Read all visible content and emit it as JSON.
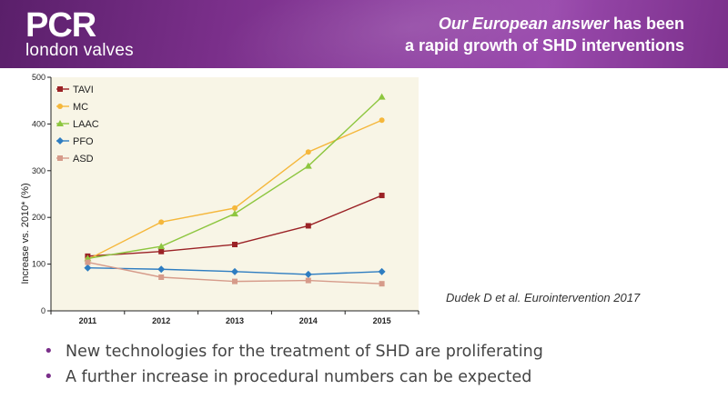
{
  "header": {
    "logo_main": "PCR",
    "logo_sub": "london valves",
    "title_em": "Our European answer",
    "title_rest": " has been",
    "title_line2": "a rapid growth of SHD interventions"
  },
  "citation": "Dudek D et al. Eurointervention 2017",
  "bullets": [
    "New technologies for the treatment of SHD are proliferating",
    "A further increase in procedural numbers can be expected"
  ],
  "colors": {
    "header": "#7a2f8a",
    "plot_background": "#f8f5e6",
    "TAVI": "#9b2226",
    "MC": "#f5b73b",
    "LAAC": "#8dc63f",
    "PFO": "#2e7dc1",
    "ASD": "#d69b8a"
  },
  "chart_data": {
    "type": "line",
    "title": "",
    "xlabel": "",
    "ylabel": "Increase vs. 2010* (%)",
    "x": [
      "2011",
      "2012",
      "2013",
      "2014",
      "2015"
    ],
    "ylim": [
      0,
      500
    ],
    "yticks": [
      "0",
      "100",
      "200",
      "300",
      "400",
      "500"
    ],
    "grid": false,
    "legend": "top-left",
    "series": [
      {
        "name": "TAVI",
        "marker": "square",
        "values": [
          117,
          127,
          142,
          182,
          247
        ]
      },
      {
        "name": "MC",
        "marker": "circle",
        "values": [
          110,
          190,
          220,
          340,
          408
        ]
      },
      {
        "name": "LAAC",
        "marker": "triangle",
        "values": [
          112,
          138,
          208,
          310,
          458
        ]
      },
      {
        "name": "PFO",
        "marker": "diamond",
        "values": [
          92,
          89,
          84,
          78,
          84
        ]
      },
      {
        "name": "ASD",
        "marker": "square",
        "values": [
          104,
          72,
          63,
          65,
          58
        ]
      }
    ]
  }
}
